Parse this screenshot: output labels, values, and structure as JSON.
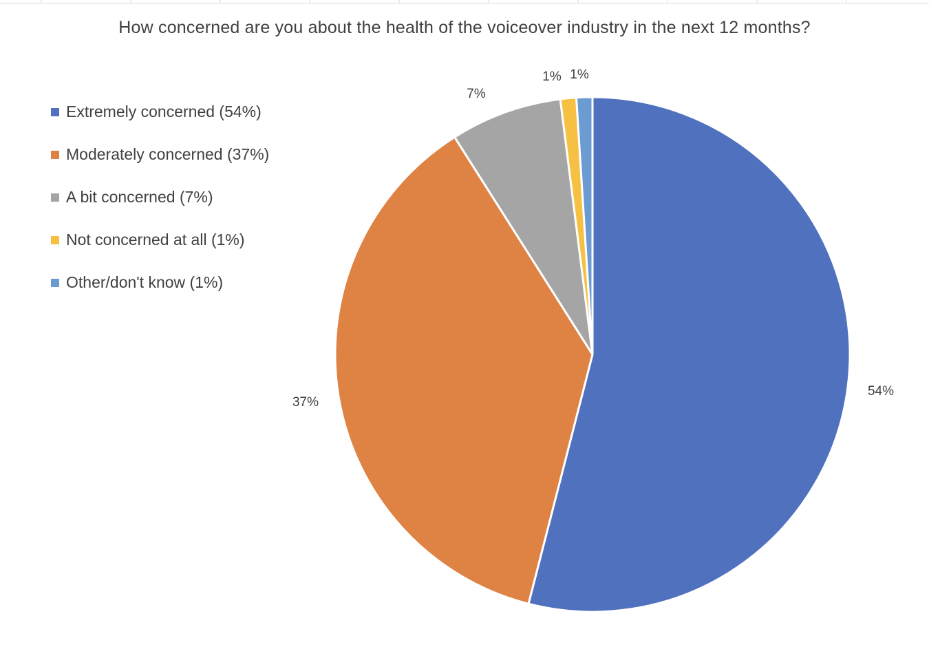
{
  "chart_data": {
    "type": "pie",
    "title": "How concerned are you about the health of the voiceover industry in the next 12 months?",
    "categories": [
      "Extremely concerned (54%)",
      "Moderately concerned (37%)",
      "A bit concerned (7%)",
      "Not concerned at all (1%)",
      "Other/don't know (1%)"
    ],
    "values": [
      54,
      37,
      7,
      1,
      1
    ],
    "data_labels": [
      "54%",
      "37%",
      "7%",
      "1%",
      "1%"
    ],
    "colors": [
      "#4F71BE",
      "#DE8344",
      "#A5A5A5",
      "#F6C143",
      "#6C9BD2"
    ],
    "legend_position": "left"
  }
}
